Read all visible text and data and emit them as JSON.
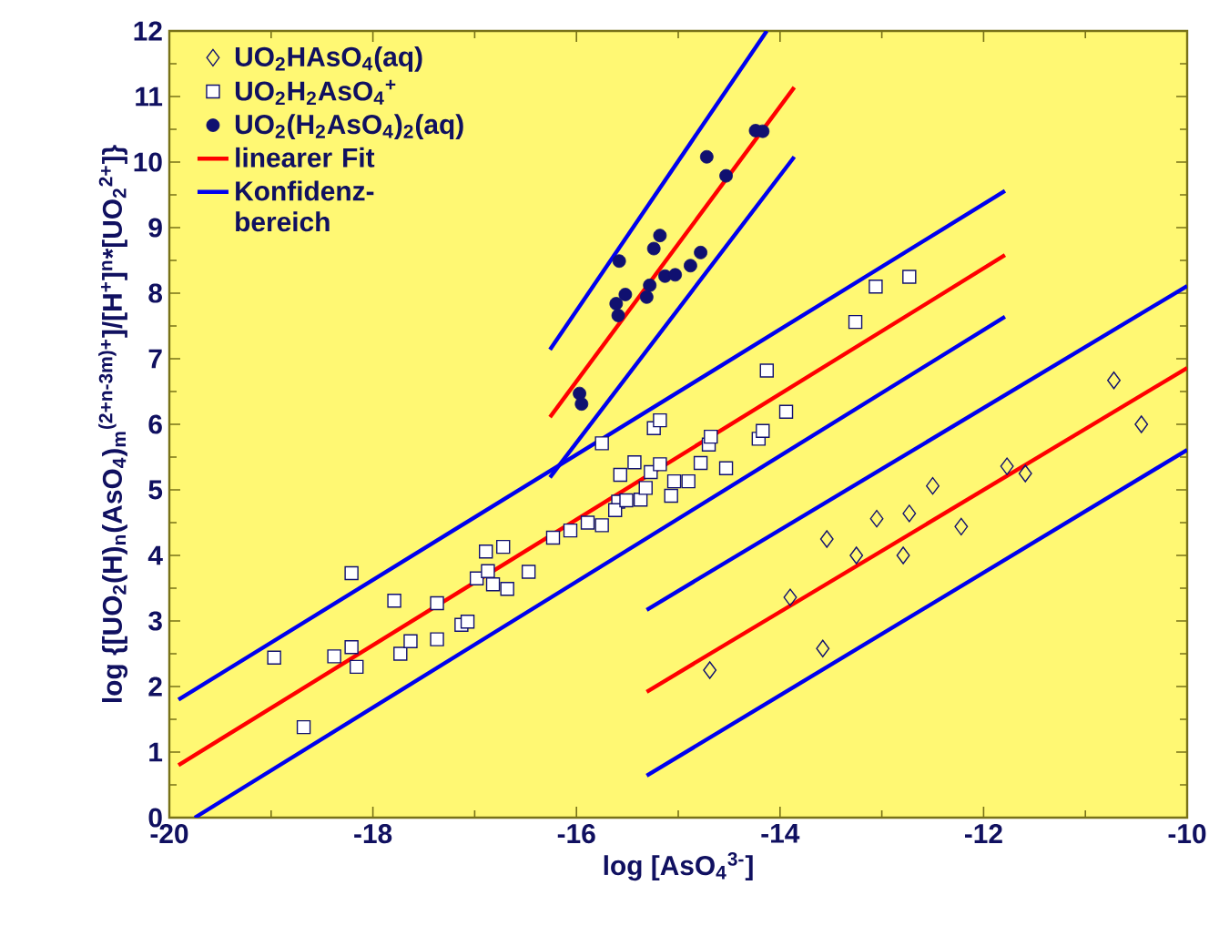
{
  "chart_data": {
    "type": "scatter",
    "xlabel": "log [AsO$_{4}$$^{3-}$]",
    "ylabel": "log {[UO$_{2}$(H)$_{n}$(AsO$_{4}$)$_{m}$$^{(2+n-3m)+}$]/[H$^{+}$]$^{n}$*[UO$_{2}$$^{2+}$]}",
    "xlim": [
      -20,
      -10
    ],
    "ylim": [
      0,
      12
    ],
    "xticks": [
      -20,
      -18,
      -16,
      -14,
      -12,
      -10
    ],
    "yticks": [
      0,
      1,
      2,
      3,
      4,
      5,
      6,
      7,
      8,
      9,
      10,
      11,
      12
    ],
    "grid": false,
    "legend": "top left",
    "series": [
      {
        "name": "UO$_{2}$HAsO$_{4}$(aq)",
        "marker": "diamond",
        "color": "#101070",
        "x": [
          -14.69,
          -13.9,
          -13.58,
          -13.54,
          -13.25,
          -13.05,
          -12.79,
          -12.73,
          -12.5,
          -12.22,
          -11.77,
          -11.59,
          -10.72,
          -10.45
        ],
        "values": [
          2.25,
          3.36,
          2.58,
          4.25,
          4.0,
          4.56,
          4.0,
          4.64,
          5.06,
          4.44,
          5.36,
          5.25,
          6.67,
          6.0
        ]
      },
      {
        "name": "UO$_{2}$H$_{2}$AsO$_{4}$$^{+}$",
        "marker": "square",
        "color": "#101070",
        "x": [
          -18.97,
          -18.68,
          -18.21,
          -18.38,
          -18.21,
          -18.16,
          -17.79,
          -17.73,
          -17.63,
          -17.37,
          -17.37,
          -17.13,
          -17.07,
          -16.98,
          -16.89,
          -16.72,
          -16.87,
          -16.82,
          -16.68,
          -16.47,
          -16.23,
          -16.06,
          -15.89,
          -15.75,
          -15.75,
          -15.59,
          -15.62,
          -15.51,
          -15.37,
          -15.32,
          -15.57,
          -15.43,
          -15.27,
          -15.18,
          -15.24,
          -15.18,
          -15.04,
          -15.07,
          -14.9,
          -14.78,
          -14.53,
          -14.7,
          -14.68,
          -14.21,
          -14.17,
          -14.13,
          -13.94,
          -13.26,
          -13.06,
          -12.73
        ],
        "values": [
          2.44,
          1.38,
          3.73,
          2.46,
          2.6,
          2.3,
          3.31,
          2.5,
          2.69,
          3.27,
          2.72,
          2.94,
          2.99,
          3.65,
          4.06,
          4.13,
          3.76,
          3.56,
          3.49,
          3.75,
          4.27,
          4.38,
          4.5,
          4.46,
          5.71,
          4.82,
          4.69,
          4.84,
          4.85,
          5.03,
          5.23,
          5.42,
          5.27,
          5.39,
          5.94,
          6.06,
          5.13,
          4.91,
          5.13,
          5.41,
          5.33,
          5.69,
          5.81,
          5.78,
          5.9,
          6.82,
          6.19,
          7.56,
          8.1,
          8.25
        ]
      },
      {
        "name": "UO$_{2}$(H$_{2}$AsO$_{4}$)$_{2}$(aq)",
        "marker": "circle",
        "color": "#101070",
        "x": [
          -15.97,
          -15.95,
          -15.58,
          -15.61,
          -15.59,
          -15.52,
          -15.31,
          -15.28,
          -15.24,
          -15.18,
          -15.13,
          -15.03,
          -14.88,
          -14.78,
          -14.72,
          -14.53,
          -14.24,
          -14.17
        ],
        "values": [
          6.47,
          6.31,
          8.49,
          7.84,
          7.66,
          7.98,
          7.94,
          8.12,
          8.68,
          8.88,
          8.26,
          8.28,
          8.42,
          8.62,
          10.08,
          9.79,
          10.48,
          10.47
        ]
      },
      {
        "name": "linearer Fit",
        "type": "line",
        "color": "#ff0000",
        "x": [
          -19.91,
          -11.79
        ],
        "values": [
          0.8,
          8.58
        ]
      },
      {
        "name": "Konfidenz-bereich",
        "type": "line",
        "color": "#0000ee",
        "x": [
          -19.91,
          -11.79
        ],
        "values": [
          1.8,
          9.56
        ]
      },
      {
        "type": "line",
        "color": "#0000ee",
        "x": [
          -19.75,
          -11.79
        ],
        "values": [
          0,
          7.64
        ]
      },
      {
        "type": "line",
        "color": "#ff0000",
        "x": [
          -15.31,
          -10
        ],
        "values": [
          1.92,
          6.86
        ]
      },
      {
        "type": "line",
        "color": "#0000ee",
        "x": [
          -15.31,
          -10
        ],
        "values": [
          3.17,
          8.11
        ]
      },
      {
        "type": "line",
        "color": "#0000ee",
        "x": [
          -15.31,
          -10
        ],
        "values": [
          0.64,
          5.61
        ]
      },
      {
        "type": "line",
        "color": "#ff0000",
        "x": [
          -16.26,
          -13.86
        ],
        "values": [
          6.11,
          11.14
        ]
      },
      {
        "type": "line",
        "color": "#0000ee",
        "x": [
          -16.26,
          -14.13
        ],
        "values": [
          7.14,
          12
        ]
      },
      {
        "type": "line",
        "color": "#0000ee",
        "x": [
          -16.26,
          -13.86
        ],
        "values": [
          5.19,
          10.08
        ]
      }
    ]
  }
}
